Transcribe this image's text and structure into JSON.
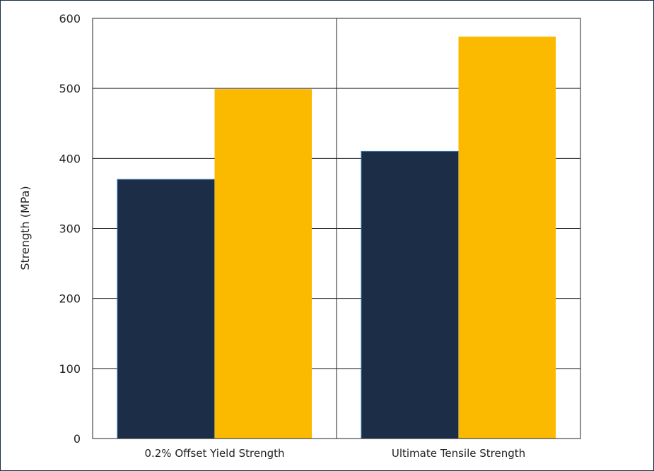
{
  "chart_data": {
    "type": "bar",
    "title": "",
    "xlabel": "",
    "ylabel": "Strength (MPa)",
    "categories": [
      "0.2% Offset Yield Strength",
      "Ultimate Tensile Strength"
    ],
    "series": [
      {
        "values": [
          370,
          410
        ],
        "color": "#1c2d47"
      },
      {
        "values": [
          499,
          574
        ],
        "color": "#fbb900"
      }
    ],
    "ylim": [
      0,
      600
    ],
    "yticks": [
      0,
      100,
      200,
      300,
      400,
      500,
      600
    ],
    "grid": true,
    "legend": "none"
  },
  "colors": {
    "frame": "#1c2d47",
    "grid": "#222222",
    "bar_edge": "#2e6fa8"
  }
}
